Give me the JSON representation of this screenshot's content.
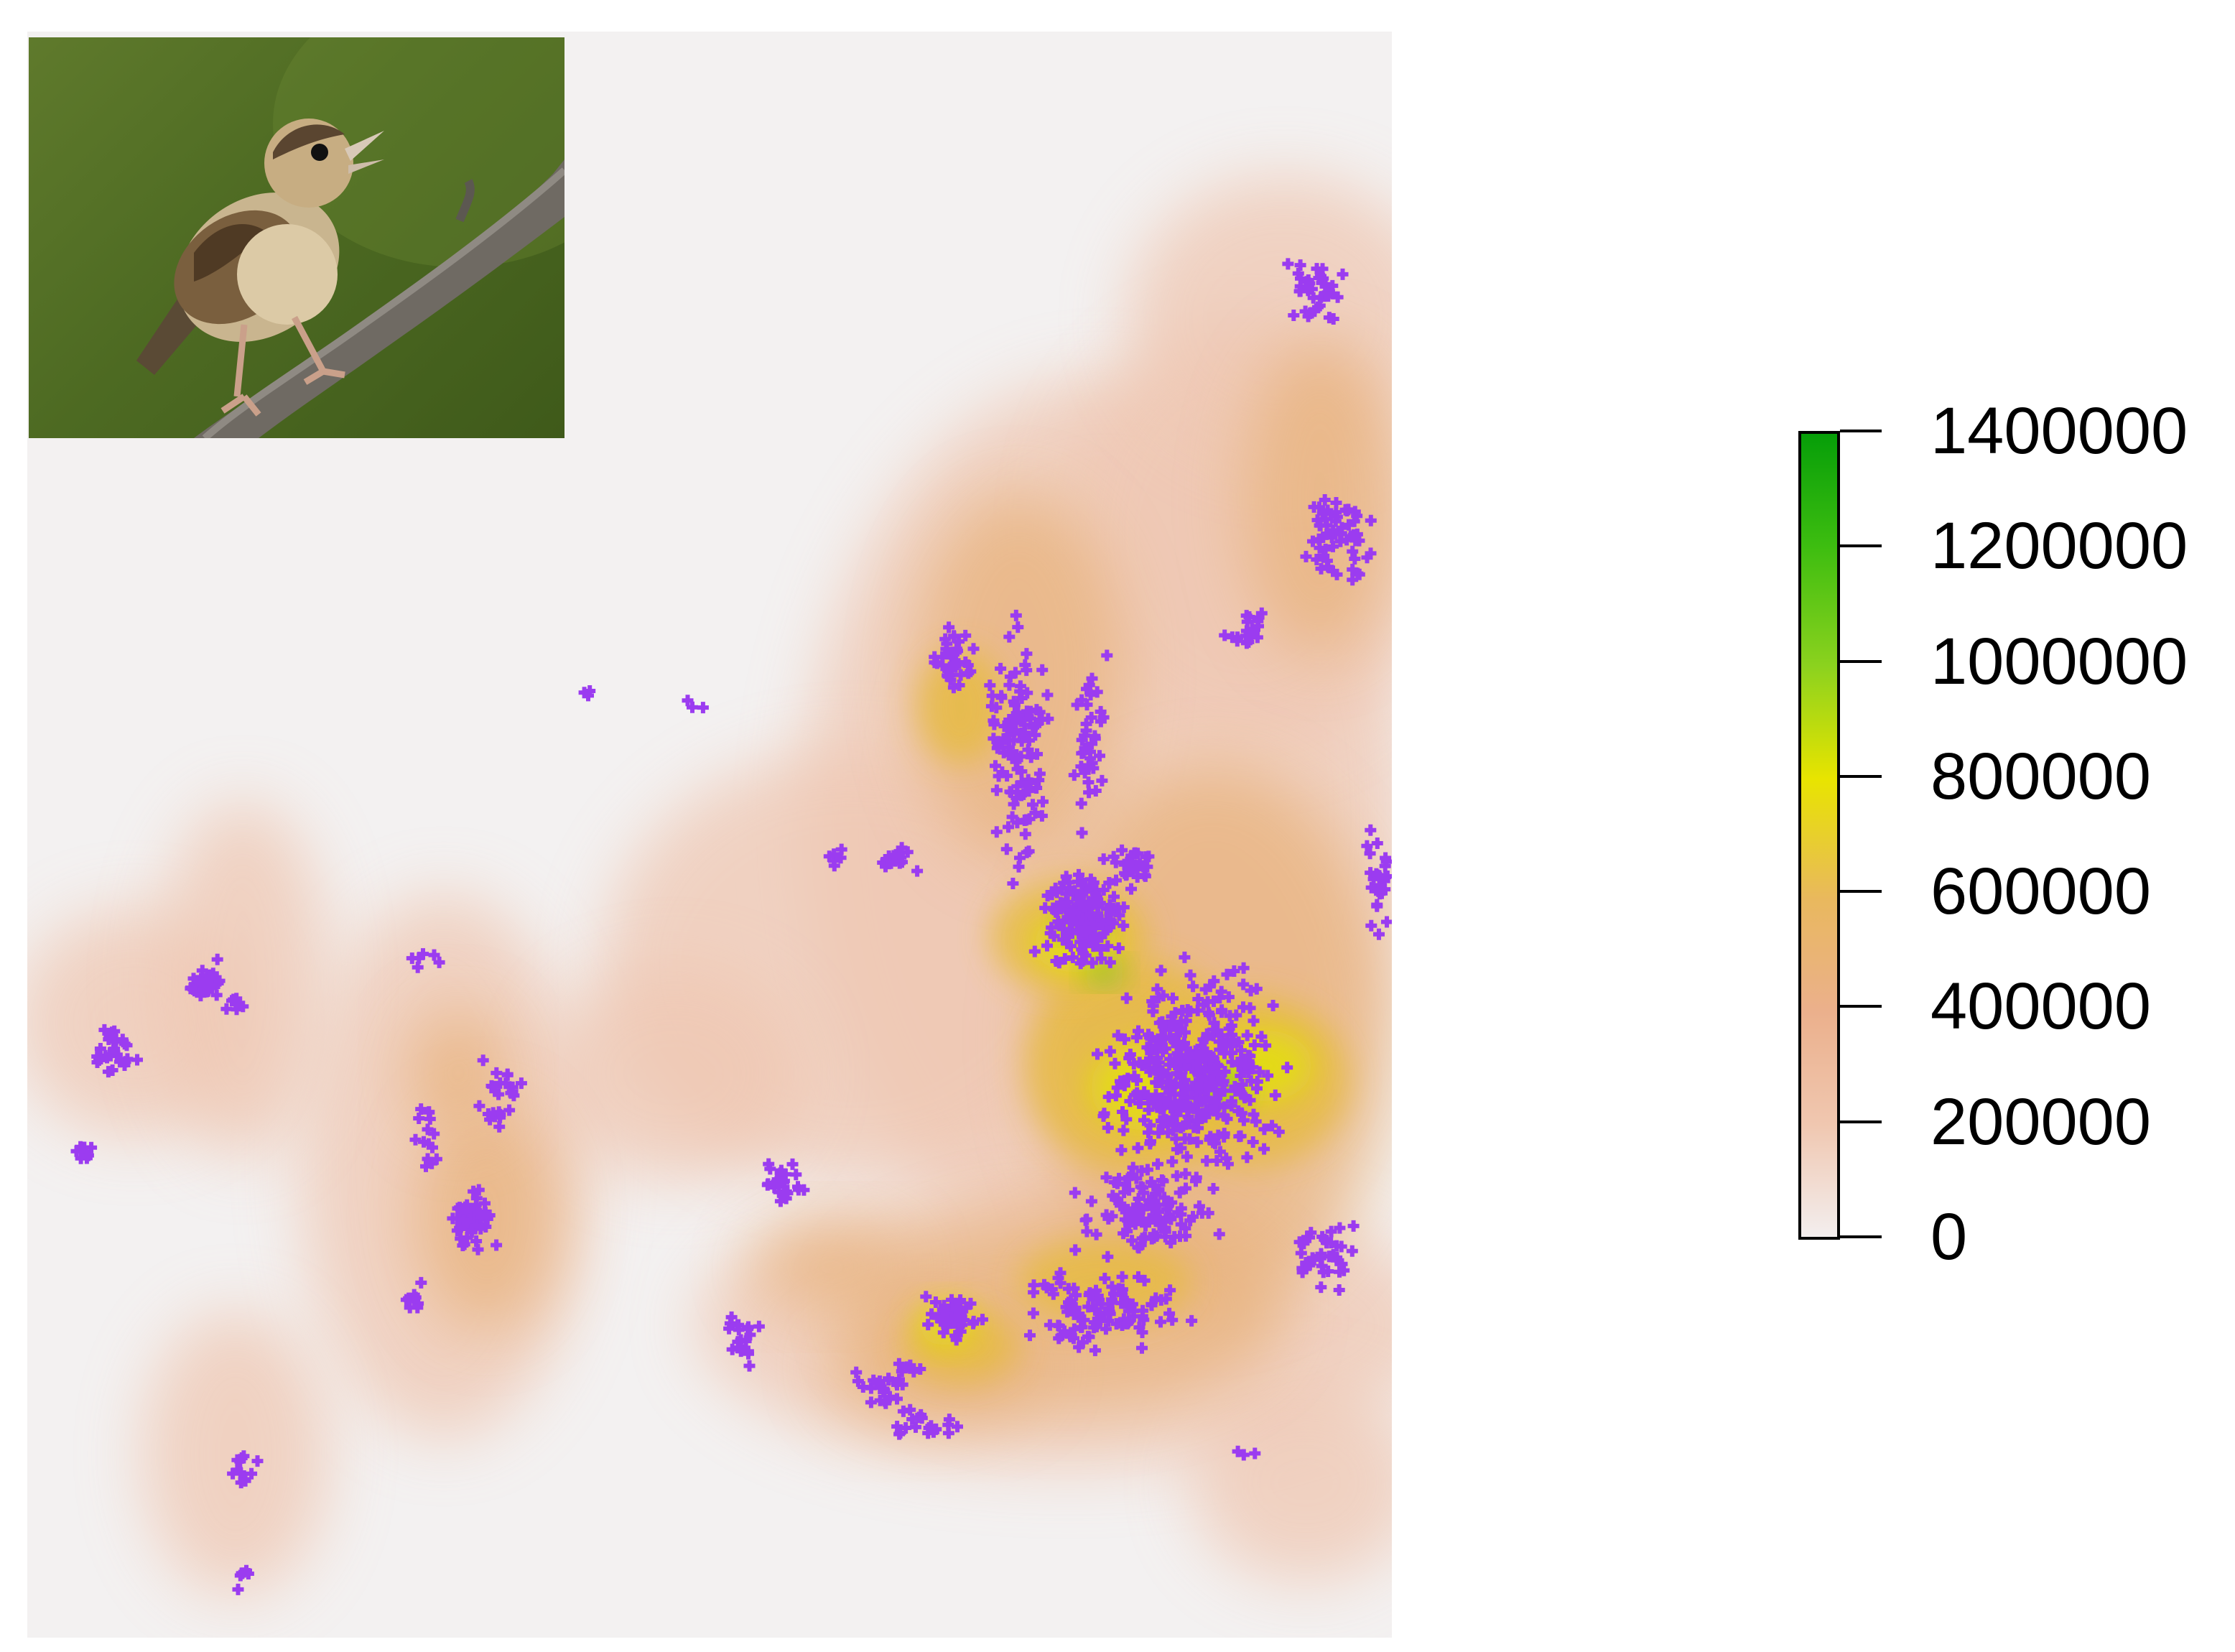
{
  "map": {
    "background_color": "#f3f1f1",
    "point_color": "#9b3cf0",
    "point_marker": "cross-icon"
  },
  "photo": {
    "icon": "grasshopper-sparrow-bird-photo"
  },
  "legend": {
    "range": [
      0,
      1400000
    ],
    "ticks": [
      "1400000",
      "1200000",
      "1000000",
      "800000",
      "600000",
      "400000",
      "200000",
      "0"
    ],
    "colors": [
      "#f3eeee",
      "#f0c7b0",
      "#ebb08c",
      "#e9b85e",
      "#e8e400",
      "#8cd21e",
      "#3dbd10",
      "#069e08"
    ]
  }
}
